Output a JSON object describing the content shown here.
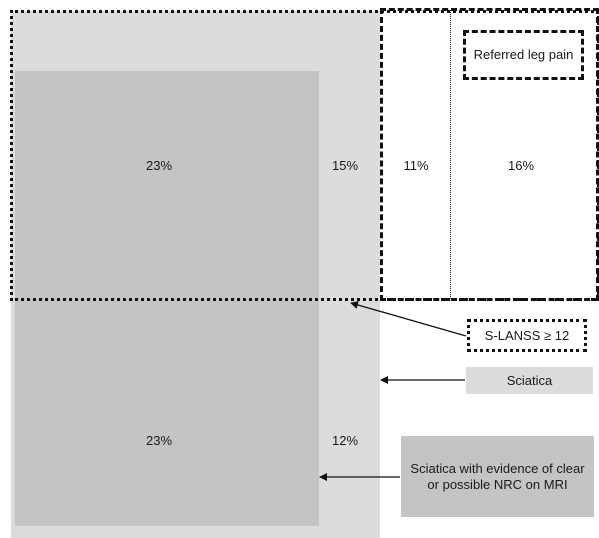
{
  "regions": {
    "sciatica_label": "Sciatica",
    "nrc_label": "Sciatica with evidence of clear or possible NRC on MRI",
    "slanss_label": "S-LANSS ≥ 12",
    "leg_label": "Referred leg pain"
  },
  "percentages": {
    "nrc_slanss": "23%",
    "sciatica_slanss": "15%",
    "leg_slanss_left": "11%",
    "leg_slanss_right": "16%",
    "nrc_no_slanss": "23%",
    "sciatica_no_slanss": "12%"
  },
  "colors": {
    "sciatica_fill": "#dcdcde",
    "nrc_fill": "#c4c4c6",
    "border": "#111111"
  }
}
